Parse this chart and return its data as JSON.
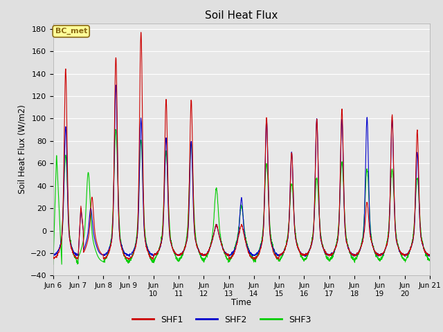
{
  "title": "Soil Heat Flux",
  "ylabel": "Soil Heat Flux (W/m2)",
  "xlabel": "Time",
  "ylim": [
    -40,
    185
  ],
  "yticks": [
    -40,
    -20,
    0,
    20,
    40,
    60,
    80,
    100,
    120,
    140,
    160,
    180
  ],
  "bg_color": "#e0e0e0",
  "plot_bg_color": "#e8e8e8",
  "shf1_color": "#cc0000",
  "shf2_color": "#0000cc",
  "shf3_color": "#00cc00",
  "legend_labels": [
    "SHF1",
    "SHF2",
    "SHF3"
  ],
  "annotation_text": "BC_met",
  "annotation_bg": "#ffff99",
  "annotation_border": "#8b6914",
  "grid_color": "#ffffff",
  "linewidth": 0.8,
  "xtick_labels": [
    "Jun 6",
    "Jun 7",
    "Jun 8",
    "Jun 9",
    "Jun\n10",
    "Jun\n11",
    "Jun\n12",
    "Jun\n13",
    "Jun\n14",
    "Jun\n15",
    "Jun\n16",
    "Jun\n17",
    "Jun\n18",
    "Jun\n19",
    "Jun\n20",
    "Jun 21"
  ]
}
